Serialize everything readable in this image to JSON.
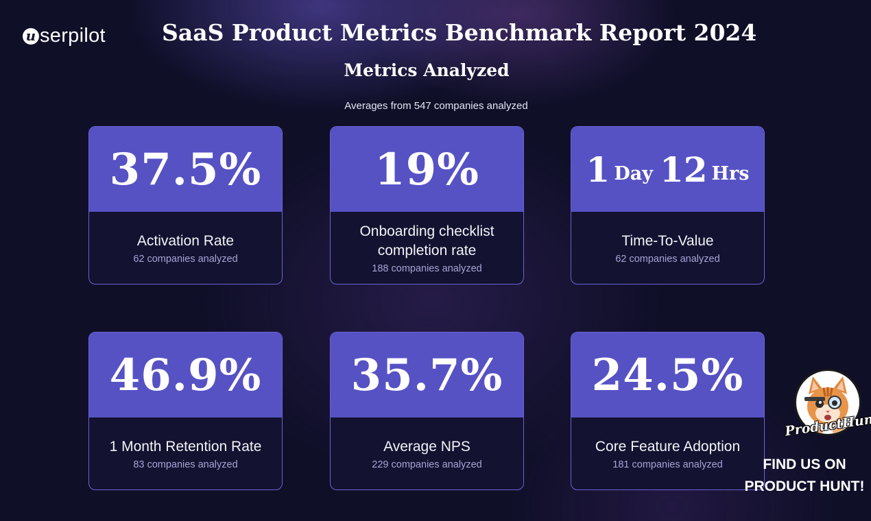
{
  "brand": {
    "logo_mark": "u",
    "logo_text": "serpilot"
  },
  "header": {
    "title": "SaaS Product Metrics Benchmark Report 2024",
    "subtitle": "Metrics Analyzed",
    "caption": "Averages from 547 companies analyzed"
  },
  "cards": [
    {
      "value": "37.5%",
      "label": "Activation Rate",
      "sub": "62 companies analyzed"
    },
    {
      "value": "19%",
      "label": "Onboarding checklist completion rate",
      "sub": "188 companies analyzed"
    },
    {
      "value_parts": [
        "1",
        "Day",
        "12",
        "Hrs"
      ],
      "label": "Time-To-Value",
      "sub": "62 companies analyzed"
    },
    {
      "value": "46.9%",
      "label": "1 Month Retention Rate",
      "sub": "83 companies analyzed"
    },
    {
      "value": "35.7%",
      "label": "Average NPS",
      "sub": "229 companies analyzed"
    },
    {
      "value": "24.5%",
      "label": "Core Feature Adoption",
      "sub": "181 companies analyzed"
    }
  ],
  "product_hunt": {
    "logo_text": "ProductHunt",
    "cta_line1": "FIND US ON",
    "cta_line2": "PRODUCT HUNT!",
    "icon": "cat-mascot-icon"
  },
  "colors": {
    "background": "#0f0f28",
    "card_accent": "#5652c4",
    "card_bottom": "#131230",
    "card_border": "#6c63d6",
    "sub_text": "#a8a4d8"
  }
}
